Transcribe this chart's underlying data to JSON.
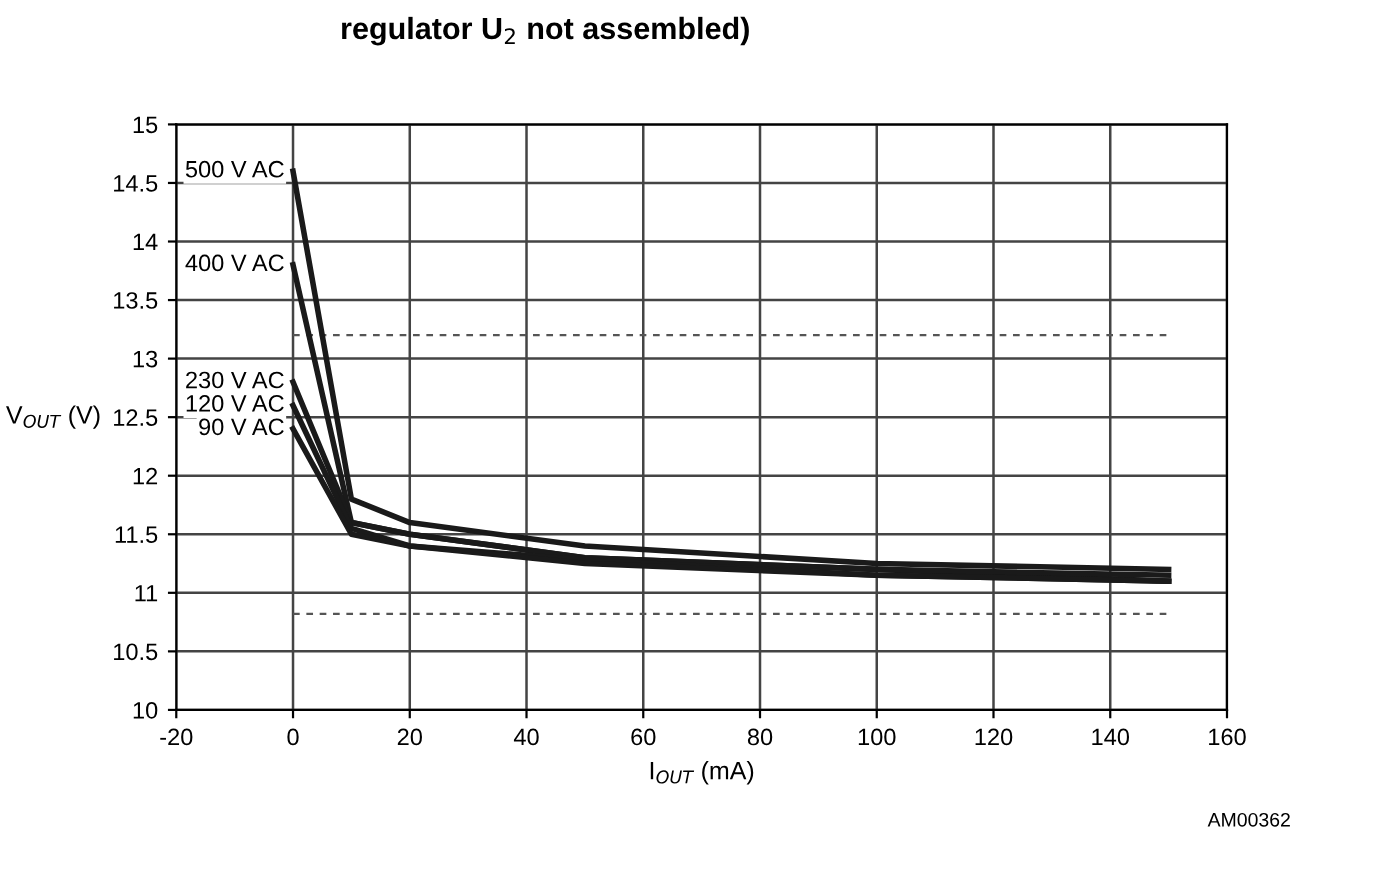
{
  "chart_data": {
    "type": "line",
    "title": "regulator U$_{2}$ not assembled)",
    "xlabel": "I$_{OUT}$ (mA)",
    "ylabel": "V$_{OUT}$ (V)",
    "x": [
      0,
      10,
      20,
      50,
      100,
      150
    ],
    "series": [
      {
        "name": "500 V AC",
        "color": "#1a1a1a",
        "values": [
          14.6,
          11.8,
          11.6,
          11.4,
          11.25,
          11.2
        ]
      },
      {
        "name": "400 V AC",
        "color": "#1a1a1a",
        "values": [
          13.8,
          11.6,
          11.5,
          11.3,
          11.2,
          11.1
        ]
      },
      {
        "name": "230 V AC",
        "color": "#1a1a1a",
        "values": [
          12.8,
          11.6,
          11.5,
          11.3,
          11.2,
          11.15
        ]
      },
      {
        "name": "120 V AC",
        "color": "#1a1a1a",
        "values": [
          12.6,
          11.55,
          11.4,
          11.28,
          11.15,
          11.1
        ]
      },
      {
        "name": "90 V AC",
        "color": "#1a1a1a",
        "values": [
          12.4,
          11.5,
          11.4,
          11.25,
          11.15,
          11.1
        ]
      }
    ],
    "xlim": [
      -20,
      160
    ],
    "xticks": [
      -20,
      0,
      20,
      40,
      60,
      80,
      100,
      120,
      140,
      160
    ],
    "ylim": [
      10,
      15
    ],
    "yticks": [
      10,
      10.5,
      11,
      11.5,
      12,
      12.5,
      13,
      13.5,
      14,
      14.5,
      15
    ],
    "ref_lines": [
      {
        "axis": "y",
        "value": 13.2,
        "color": "#555555",
        "line_style": "dashed"
      },
      {
        "axis": "y",
        "value": 10.82,
        "color": "#555555",
        "line_style": "dashed"
      }
    ],
    "grid": true,
    "legend": false,
    "marker": "none",
    "line_style": "solid",
    "annotations": [
      "AM00362"
    ]
  }
}
